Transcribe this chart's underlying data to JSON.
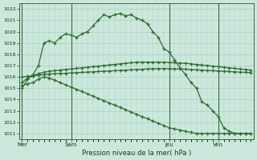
{
  "xlabel": "Pression niveau de la mer( hPa )",
  "background_color": "#cce8dc",
  "grid_color": "#aacfbf",
  "line_color": "#2d6e2d",
  "ylim": [
    1010.5,
    1022.5
  ],
  "yticks": [
    1011,
    1012,
    1013,
    1014,
    1015,
    1016,
    1017,
    1018,
    1019,
    1020,
    1021,
    1022
  ],
  "day_labels": [
    "Mer",
    "Sam",
    "Jeu",
    "Ven"
  ],
  "day_positions": [
    0,
    9,
    27,
    36
  ],
  "n_points": 43,
  "series1": [
    1015.0,
    1015.8,
    1016.2,
    1017.0,
    1019.0,
    1019.2,
    1019.0,
    1019.5,
    1019.8,
    1019.7,
    1019.5,
    1019.8,
    1020.0,
    1020.5,
    1021.0,
    1021.5,
    1021.3,
    1021.5,
    1021.6,
    1021.4,
    1021.5,
    1021.2,
    1021.0,
    1020.7,
    1020.0,
    1019.5,
    1018.5,
    1018.2,
    1017.5,
    1016.8,
    1016.2,
    1015.5,
    1015.0,
    1013.8,
    1013.5,
    1013.0,
    1012.5,
    1011.5,
    1011.2,
    1011.0,
    1011.0,
    1011.0,
    1011.0
  ],
  "series2": [
    1015.5,
    1015.9,
    1016.1,
    1016.3,
    1016.4,
    1016.5,
    1016.55,
    1016.6,
    1016.65,
    1016.7,
    1016.75,
    1016.8,
    1016.85,
    1016.9,
    1016.95,
    1017.0,
    1017.05,
    1017.1,
    1017.15,
    1017.2,
    1017.25,
    1017.3,
    1017.3,
    1017.3,
    1017.3,
    1017.3,
    1017.3,
    1017.28,
    1017.25,
    1017.22,
    1017.2,
    1017.15,
    1017.1,
    1017.05,
    1017.0,
    1016.95,
    1016.9,
    1016.85,
    1016.8,
    1016.75,
    1016.7,
    1016.65,
    1016.6
  ],
  "series3": [
    1016.0,
    1016.05,
    1016.1,
    1016.15,
    1016.2,
    1016.25,
    1016.28,
    1016.3,
    1016.32,
    1016.35,
    1016.37,
    1016.4,
    1016.42,
    1016.45,
    1016.47,
    1016.5,
    1016.52,
    1016.55,
    1016.57,
    1016.6,
    1016.62,
    1016.65,
    1016.67,
    1016.7,
    1016.72,
    1016.73,
    1016.73,
    1016.72,
    1016.71,
    1016.7,
    1016.68,
    1016.65,
    1016.62,
    1016.6,
    1016.57,
    1016.55,
    1016.52,
    1016.5,
    1016.47,
    1016.45,
    1016.42,
    1016.4,
    1016.38
  ],
  "series4": [
    1015.2,
    1015.4,
    1015.5,
    1015.8,
    1016.0,
    1015.9,
    1015.7,
    1015.5,
    1015.3,
    1015.1,
    1014.9,
    1014.7,
    1014.5,
    1014.3,
    1014.1,
    1013.9,
    1013.7,
    1013.5,
    1013.3,
    1013.1,
    1012.9,
    1012.7,
    1012.5,
    1012.3,
    1012.1,
    1011.9,
    1011.7,
    1011.5,
    1011.4,
    1011.3,
    1011.2,
    1011.1,
    1011.0,
    1011.0,
    1011.0,
    1011.0,
    1011.0,
    1011.0,
    1011.0,
    1011.0,
    1011.0,
    1011.0,
    1011.0
  ]
}
